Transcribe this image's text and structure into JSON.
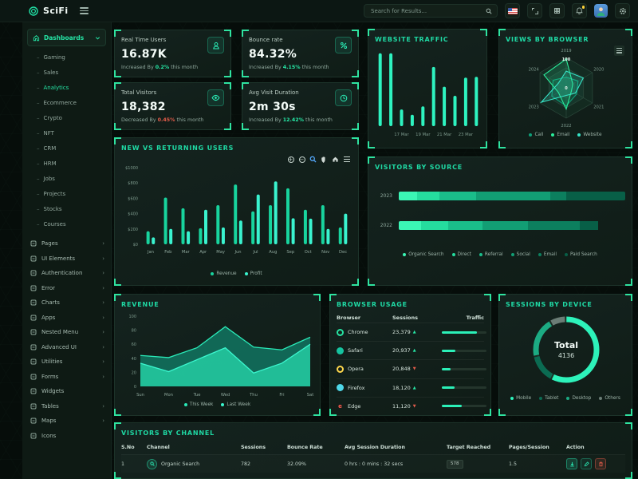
{
  "colors": {
    "accent": "#21e0a5",
    "bright": "#35f7c8",
    "red": "#e25c4a",
    "title": "#1fd9a4",
    "yellow": "#ffd43b"
  },
  "header": {
    "logo_text": "SciFi",
    "search_placeholder": "Search for Results...",
    "icons": [
      "hamburger-icon",
      "search-icon",
      "us-flag-icon",
      "fullscreen-icon",
      "apps-grid-icon",
      "notifications-bell-icon",
      "user-avatar",
      "settings-gear-icon"
    ]
  },
  "sidebar": {
    "dashboards": {
      "label": "Dashboards",
      "expanded": true,
      "children": [
        "Gaming",
        "Sales",
        "Analytics",
        "Ecommerce",
        "Crypto",
        "NFT",
        "CRM",
        "HRM",
        "Jobs",
        "Projects",
        "Stocks",
        "Courses"
      ],
      "active_child": "Analytics"
    },
    "sections": [
      {
        "label": "Pages",
        "icon": "pages-icon",
        "arrow": true
      },
      {
        "label": "UI Elements",
        "icon": "ui-elements-icon",
        "arrow": true
      },
      {
        "label": "Authentication",
        "icon": "authentication-icon",
        "arrow": true
      },
      {
        "label": "Error",
        "icon": "error-icon",
        "arrow": true
      },
      {
        "label": "Charts",
        "icon": "charts-icon",
        "arrow": true
      },
      {
        "label": "Apps",
        "icon": "apps-icon",
        "arrow": true
      },
      {
        "label": "Nested Menu",
        "icon": "nested-menu-icon",
        "arrow": true
      },
      {
        "label": "Advanced UI",
        "icon": "advanced-ui-icon",
        "arrow": true
      },
      {
        "label": "Utilities",
        "icon": "utilities-icon",
        "arrow": true
      },
      {
        "label": "Forms",
        "icon": "forms-icon",
        "arrow": true
      },
      {
        "label": "Widgets",
        "icon": "widgets-icon",
        "arrow": false
      },
      {
        "label": "Tables",
        "icon": "tables-icon",
        "arrow": true
      },
      {
        "label": "Maps",
        "icon": "maps-icon",
        "arrow": true
      },
      {
        "label": "Icons",
        "icon": "icons-icon",
        "arrow": false
      }
    ]
  },
  "stats": [
    {
      "title": "Real Time Users",
      "value": "16.87K",
      "change_prefix": "Increased By",
      "change_pct": "0.2%",
      "change_suffix": "this month",
      "direction": "up",
      "icon": "user-icon"
    },
    {
      "title": "Bounce rate",
      "value": "84.32%",
      "change_prefix": "Increased By",
      "change_pct": "4.15%",
      "change_suffix": "this month",
      "direction": "up",
      "icon": "percent-icon"
    },
    {
      "title": "Total Visitors",
      "value": "18,382",
      "change_prefix": "Decreased By",
      "change_pct": "0.45%",
      "change_suffix": "this month",
      "direction": "down",
      "icon": "eye-icon"
    },
    {
      "title": "Avg Visit Duration",
      "value": "2m 30s",
      "change_prefix": "Increased By",
      "change_pct": "12.42%",
      "change_suffix": "this month",
      "direction": "up",
      "icon": "clock-icon"
    }
  ],
  "chart_data": [
    {
      "name": "website_traffic",
      "type": "bar",
      "title": "WEBSITE TRAFFIC",
      "values": [
        96,
        96,
        22,
        15,
        26,
        78,
        52,
        40,
        64,
        65
      ],
      "tick_labels": [
        "17 Mar",
        "19 Mar",
        "21 Mar",
        "23 Mar"
      ],
      "tick_bar_index": [
        2,
        4,
        6,
        8
      ],
      "ylim": [
        0,
        100
      ],
      "bar_color": "#2ef3c0"
    },
    {
      "name": "views_by_browser",
      "type": "radar",
      "title": "VIEWS BY BROWSER",
      "axes": [
        "2019",
        "2020",
        "2021",
        "2022",
        "2023",
        "2024"
      ],
      "max_label": "100",
      "center_label": "0",
      "ylim": [
        0,
        100
      ],
      "legend": [
        "Call",
        "Email",
        "Website"
      ],
      "series": [
        {
          "name": "Call",
          "color": "#0e9f78",
          "values": [
            35,
            45,
            40,
            60,
            55,
            50
          ]
        },
        {
          "name": "Email",
          "color": "#2bee9c",
          "values": [
            95,
            25,
            20,
            70,
            30,
            85
          ]
        },
        {
          "name": "Website",
          "color": "#36e3c6",
          "values": [
            55,
            65,
            35,
            25,
            95,
            30
          ]
        }
      ]
    },
    {
      "name": "new_vs_returning",
      "type": "bar",
      "title": "NEW VS RETURNING USERS",
      "categories": [
        "Jan",
        "Feb",
        "Mar",
        "Apr",
        "May",
        "Jun",
        "Jul",
        "Aug",
        "Sep",
        "Oct",
        "Nov",
        "Dec"
      ],
      "ytick_labels": [
        "$0",
        "$200",
        "$400",
        "$600",
        "$800",
        "$1000"
      ],
      "ylim": [
        0,
        1000
      ],
      "series": [
        {
          "name": "Revenue",
          "color": "#18d49e",
          "values": [
            170,
            610,
            470,
            210,
            510,
            780,
            430,
            510,
            730,
            450,
            510,
            220
          ]
        },
        {
          "name": "Profit",
          "color": "#3af3cf",
          "values": [
            90,
            200,
            170,
            450,
            220,
            310,
            650,
            820,
            340,
            335,
            200,
            400
          ]
        }
      ],
      "toolbar_icons": [
        "zoom-in",
        "zoom-out",
        "selection-zoom",
        "pan",
        "reset-home",
        "menu"
      ]
    },
    {
      "name": "visitors_by_source",
      "type": "stacked-bar-horizontal",
      "title": "VISITORS BY SOURCE",
      "categories": [
        "2023",
        "2022"
      ],
      "legend": [
        "Organic Search",
        "Direct",
        "Referral",
        "Social",
        "Email",
        "Paid Search"
      ],
      "segment_colors": [
        "#3bf6b5",
        "#25dc9e",
        "#1abd8a",
        "#129e74",
        "#0c7f5e",
        "#085f47"
      ],
      "rows": [
        {
          "label": "2023",
          "segments": [
            8,
            10,
            16,
            33,
            7,
            26
          ]
        },
        {
          "label": "2022",
          "segments": [
            10,
            12,
            15,
            20,
            23,
            8
          ]
        }
      ]
    },
    {
      "name": "revenue",
      "type": "area",
      "title": "REVENUE",
      "categories": [
        "Sun",
        "Mon",
        "Tue",
        "Wed",
        "Thu",
        "Fri",
        "Sat"
      ],
      "ytick_labels": [
        "0",
        "20",
        "40",
        "60",
        "80",
        "100"
      ],
      "ylim": [
        0,
        100
      ],
      "series": [
        {
          "name": "This Week",
          "line": "#2aeab8",
          "fill": "#11725f",
          "values": [
            44,
            41,
            55,
            85,
            56,
            52,
            70
          ]
        },
        {
          "name": "Last Week",
          "line": "#3bf7cf",
          "fill": "#23c9a0",
          "values": [
            33,
            21,
            38,
            55,
            19,
            33,
            60
          ]
        }
      ]
    },
    {
      "name": "sessions_by_device",
      "type": "donut",
      "title": "SESSIONS BY DEVICE",
      "center_label": "Total",
      "center_value": "4136",
      "legend": [
        "Mobile",
        "Tablet",
        "Desktop",
        "Others"
      ],
      "values": [
        58,
        14,
        20,
        8
      ],
      "segment_colors": [
        "#2df2ba",
        "#0b6b52",
        "#1cab83",
        "#6b7d76"
      ]
    }
  ],
  "browser_usage": {
    "title": "BROWSER USAGE",
    "columns": [
      "Browser",
      "Sessions",
      "Traffic"
    ],
    "rows": [
      {
        "name": "Chrome",
        "icon": "chrome-icon",
        "sessions": "23,379",
        "direction": "up",
        "traffic_pct": 78
      },
      {
        "name": "Safari",
        "icon": "safari-icon",
        "sessions": "20,937",
        "direction": "up",
        "traffic_pct": 30
      },
      {
        "name": "Opera",
        "icon": "opera-icon",
        "sessions": "20,848",
        "direction": "down",
        "traffic_pct": 20
      },
      {
        "name": "Firefox",
        "icon": "firefox-icon",
        "sessions": "18,120",
        "direction": "up",
        "traffic_pct": 28
      },
      {
        "name": "Edge",
        "icon": "edge-icon",
        "sessions": "11,120",
        "direction": "down",
        "traffic_pct": 45
      }
    ]
  },
  "visitors_by_channel": {
    "title": "VISITORS BY CHANNEL",
    "columns": [
      "S.No",
      "Channel",
      "Sessions",
      "Bounce Rate",
      "Avg Session Duration",
      "Target Reached",
      "Pages/Session",
      "Action"
    ],
    "rows": [
      {
        "sno": "1",
        "channel": "Organic Search",
        "channel_icon": "search-icon",
        "sessions": "782",
        "bounce_rate": "32.09%",
        "avg_session_duration": "0 hrs : 0 mins : 32 secs",
        "target_reached": "578",
        "pages_per_session": "1.5",
        "actions": [
          "download-action-icon",
          "edit-action-icon",
          "delete-action-icon"
        ]
      }
    ]
  }
}
